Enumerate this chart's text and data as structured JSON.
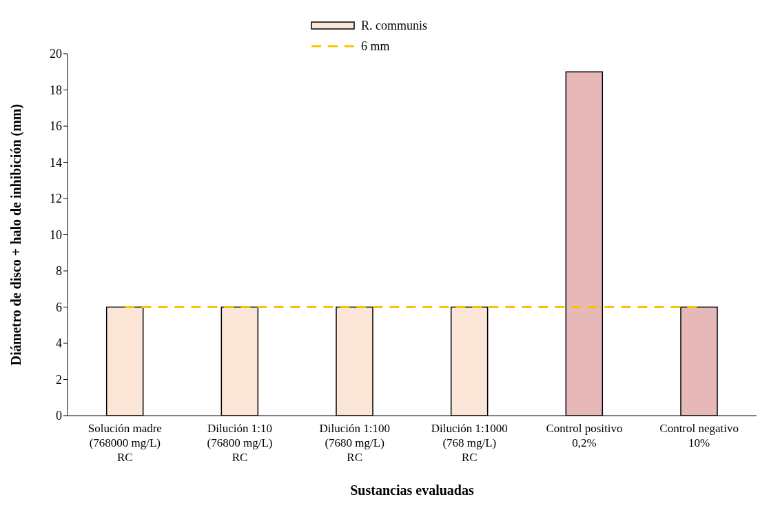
{
  "chart_data": {
    "type": "bar",
    "xlabel": "Sustancias evaluadas",
    "ylabel": "Diámetro de disco + halo de inhibición (mm)",
    "categories": [
      "Solución madre\n(768000 mg/L)\nRC",
      "Dilución 1:10\n(76800 mg/L)\nRC",
      "Dilución 1:100\n(7680 mg/L)\nRC",
      "Dilución 1:1000\n(768 mg/L)\nRC",
      "Control positivo\n0,2%",
      "Control negativo\n10%"
    ],
    "series": [
      {
        "name": "R. communis",
        "colors": [
          "#fbe5d6",
          "#fbe5d6",
          "#fbe5d6",
          "#fbe5d6",
          "#e6b9b8",
          "#e6b9b8"
        ],
        "values": [
          6,
          6,
          6,
          6,
          19,
          6
        ]
      },
      {
        "name": "6 mm",
        "type": "line",
        "color": "#ffc000",
        "line_style": "dashed",
        "marker": "none",
        "values": [
          6,
          6,
          6,
          6,
          6,
          6
        ]
      }
    ],
    "ylim": [
      0,
      20
    ],
    "yticks": [
      0,
      2,
      4,
      6,
      8,
      10,
      12,
      14,
      16,
      18,
      20
    ],
    "legend": "top"
  }
}
